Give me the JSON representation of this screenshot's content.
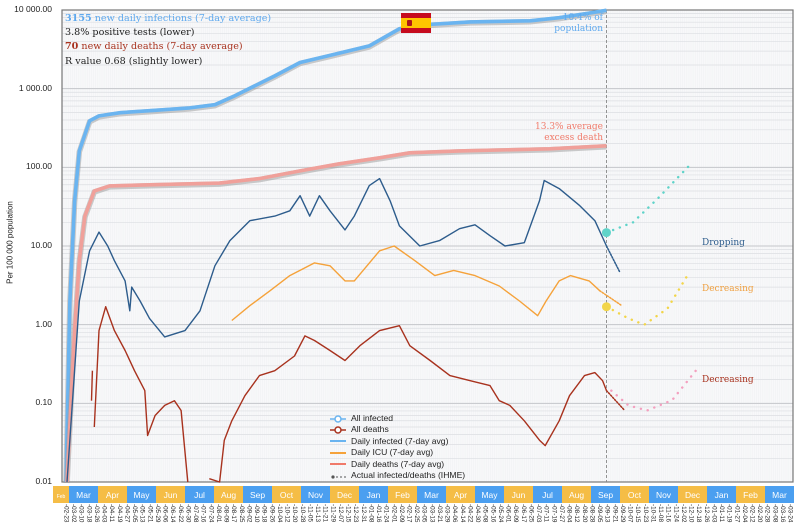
{
  "info": {
    "infections_count": "3155",
    "infections_text": " new daily infections (7-day average)",
    "positive_tests": "3.8% positive tests (lower)",
    "deaths_count": "70",
    "deaths_text": " new daily deaths (7-day average)",
    "r_value": "R value 0.68 (slightly lower)"
  },
  "annotations": {
    "population_share": [
      "10.4% of",
      "population"
    ],
    "excess_death": [
      "13.3% average",
      "excess death"
    ],
    "infected_trend": "Dropping",
    "icu_trend": "Decreasing",
    "deaths_trend": "Decreasing"
  },
  "flag": {
    "country": "Spain",
    "colors": [
      "#c60b1e",
      "#ffc400",
      "#c60b1e"
    ]
  },
  "chart_data": {
    "type": "line",
    "title": "",
    "ylabel": "Per 100 000 population",
    "y_scale": "log",
    "ylim": [
      0.01,
      10000
    ],
    "y_ticks": [
      "10 000.00",
      "1 000.00",
      "100.00",
      "10.00",
      "1.00",
      "0.10",
      "0.01"
    ],
    "grid": true,
    "legend_position": "bottom-center",
    "today_marker": "2021-09-17",
    "months": [
      {
        "label": "Feb",
        "color": "#f5bd46"
      },
      {
        "label": "Mar",
        "color": "#4b9ff0"
      },
      {
        "label": "Apr",
        "color": "#f5bd46"
      },
      {
        "label": "May",
        "color": "#4b9ff0"
      },
      {
        "label": "Jun",
        "color": "#f5bd46"
      },
      {
        "label": "Jul",
        "color": "#4b9ff0"
      },
      {
        "label": "Aug",
        "color": "#f5bd46"
      },
      {
        "label": "Sep",
        "color": "#4b9ff0"
      },
      {
        "label": "Oct",
        "color": "#f5bd46"
      },
      {
        "label": "Nov",
        "color": "#4b9ff0"
      },
      {
        "label": "Dec",
        "color": "#f5bd46"
      },
      {
        "label": "Jan",
        "color": "#4b9ff0"
      },
      {
        "label": "Feb",
        "color": "#f5bd46"
      },
      {
        "label": "Mar",
        "color": "#4b9ff0"
      },
      {
        "label": "Apr",
        "color": "#f5bd46"
      },
      {
        "label": "May",
        "color": "#4b9ff0"
      },
      {
        "label": "Jun",
        "color": "#f5bd46"
      },
      {
        "label": "Jul",
        "color": "#4b9ff0"
      },
      {
        "label": "Aug",
        "color": "#f5bd46"
      },
      {
        "label": "Sep",
        "color": "#4b9ff0"
      },
      {
        "label": "Oct",
        "color": "#f5bd46"
      },
      {
        "label": "Nov",
        "color": "#4b9ff0"
      },
      {
        "label": "Dec",
        "color": "#f5bd46"
      },
      {
        "label": "Jan",
        "color": "#4b9ff0"
      },
      {
        "label": "Feb",
        "color": "#f5bd46"
      },
      {
        "label": "Mar",
        "color": "#4b9ff0"
      }
    ],
    "date_ticks": [
      "02-23",
      "03-02",
      "03-10",
      "03-18",
      "03-26",
      "04-03",
      "04-11",
      "04-19",
      "04-27",
      "05-05",
      "05-13",
      "05-21",
      "05-29",
      "06-06",
      "06-14",
      "06-22",
      "06-30",
      "07-08",
      "07-16",
      "07-24",
      "08-01",
      "08-09",
      "08-17",
      "08-25",
      "09-02",
      "09-10",
      "09-18",
      "09-26",
      "10-04",
      "10-12",
      "10-20",
      "10-28",
      "11-05",
      "11-13",
      "11-21",
      "11-29",
      "12-07",
      "12-15",
      "12-23",
      "12-31",
      "01-08",
      "01-16",
      "01-24",
      "02-01",
      "02-09",
      "02-17",
      "02-25",
      "03-05",
      "03-13",
      "03-21",
      "03-29",
      "04-06",
      "04-14",
      "04-22",
      "04-30",
      "05-08",
      "05-16",
      "05-24",
      "06-01",
      "06-09",
      "06-17",
      "06-25",
      "07-03",
      "07-11",
      "07-19",
      "07-27",
      "08-04",
      "08-12",
      "08-20",
      "08-28",
      "09-05",
      "09-13",
      "09-21",
      "09-29",
      "10-07",
      "10-15",
      "10-23",
      "10-31",
      "11-08",
      "11-16",
      "11-24",
      "12-02",
      "12-10",
      "12-18",
      "12-26",
      "01-03",
      "01-11",
      "01-19",
      "01-27",
      "02-04",
      "02-12",
      "02-20",
      "02-28",
      "03-08",
      "03-16",
      "03-24"
    ],
    "series": [
      {
        "name": "All infected",
        "color": "#6ab4f0",
        "style": "cumulative",
        "points": [
          [
            "2020-02-27",
            0.01
          ],
          [
            "2020-03-02",
            2.0
          ],
          [
            "2020-03-07",
            37
          ],
          [
            "2020-03-12",
            162
          ],
          [
            "2020-03-23",
            390
          ],
          [
            "2020-04-02",
            450
          ],
          [
            "2020-04-24",
            495
          ],
          [
            "2020-05-25",
            525
          ],
          [
            "2020-07-06",
            570
          ],
          [
            "2020-08-02",
            625
          ],
          [
            "2020-08-23",
            810
          ],
          [
            "2020-09-13",
            1085
          ],
          [
            "2020-10-04",
            1455
          ],
          [
            "2020-10-31",
            2150
          ],
          [
            "2020-12-01",
            2650
          ],
          [
            "2021-01-12",
            3500
          ],
          [
            "2021-02-12",
            5760
          ],
          [
            "2021-03-04",
            6450
          ],
          [
            "2021-04-26",
            7050
          ],
          [
            "2021-06-28",
            7300
          ],
          [
            "2021-07-29",
            7980
          ],
          [
            "2021-08-30",
            9130
          ],
          [
            "2021-09-17",
            9920
          ]
        ]
      },
      {
        "name": "All deaths",
        "color": "#f0a09a",
        "style": "cumulative",
        "points": [
          [
            "2020-02-28",
            0.01
          ],
          [
            "2020-03-07",
            0.85
          ],
          [
            "2020-03-12",
            6.5
          ],
          [
            "2020-03-18",
            24
          ],
          [
            "2020-03-28",
            50
          ],
          [
            "2020-04-13",
            58
          ],
          [
            "2020-05-25",
            60
          ],
          [
            "2020-08-07",
            63
          ],
          [
            "2020-09-18",
            72
          ],
          [
            "2020-10-31",
            90
          ],
          [
            "2020-12-11",
            111
          ],
          [
            "2021-01-23",
            132
          ],
          [
            "2021-02-22",
            153
          ],
          [
            "2021-04-15",
            162
          ],
          [
            "2021-07-19",
            172
          ],
          [
            "2021-09-17",
            188
          ]
        ]
      },
      {
        "name": "Daily infected (7-day avg)",
        "color": "#2d5c8c",
        "style": "line",
        "points": [
          [
            "2020-02-28",
            0.01
          ],
          [
            "2020-03-12",
            2.0
          ],
          [
            "2020-03-23",
            8.7
          ],
          [
            "2020-04-02",
            15
          ],
          [
            "2020-04-11",
            10
          ],
          [
            "2020-04-18",
            6.5
          ],
          [
            "2020-04-29",
            3.6
          ],
          [
            "2020-05-04",
            1.5
          ],
          [
            "2020-05-06",
            3.0
          ],
          [
            "2020-05-15",
            2.0
          ],
          [
            "2020-05-25",
            1.2
          ],
          [
            "2020-06-10",
            0.7
          ],
          [
            "2020-07-01",
            0.84
          ],
          [
            "2020-07-17",
            1.5
          ],
          [
            "2020-08-02",
            5.6
          ],
          [
            "2020-08-18",
            11.7
          ],
          [
            "2020-09-08",
            21
          ],
          [
            "2020-10-04",
            24
          ],
          [
            "2020-10-20",
            28
          ],
          [
            "2020-10-31",
            43.6
          ],
          [
            "2020-11-10",
            24
          ],
          [
            "2020-11-20",
            43.6
          ],
          [
            "2020-12-01",
            28
          ],
          [
            "2020-12-17",
            16
          ],
          [
            "2020-12-27",
            24
          ],
          [
            "2021-01-12",
            58.6
          ],
          [
            "2021-01-23",
            72
          ],
          [
            "2021-02-03",
            37.6
          ],
          [
            "2021-02-12",
            18
          ],
          [
            "2021-03-04",
            10
          ],
          [
            "2021-03-25",
            11.7
          ],
          [
            "2021-04-15",
            16.6
          ],
          [
            "2021-05-01",
            18.6
          ],
          [
            "2021-05-17",
            13.5
          ],
          [
            "2021-06-02",
            10
          ],
          [
            "2021-06-22",
            11
          ],
          [
            "2021-07-08",
            37.6
          ],
          [
            "2021-07-13",
            68
          ],
          [
            "2021-07-29",
            53.6
          ],
          [
            "2021-08-20",
            32.5
          ],
          [
            "2021-09-05",
            21
          ],
          [
            "2021-09-17",
            10
          ]
        ]
      },
      {
        "name": "Daily ICU (7-day avg)",
        "color": "#f5a23a",
        "style": "line",
        "points": [
          [
            "2020-08-20",
            1.13
          ],
          [
            "2020-09-08",
            1.74
          ],
          [
            "2020-09-29",
            2.7
          ],
          [
            "2020-10-20",
            4.2
          ],
          [
            "2020-11-15",
            6.1
          ],
          [
            "2020-12-01",
            5.6
          ],
          [
            "2020-12-17",
            3.6
          ],
          [
            "2020-12-27",
            3.6
          ],
          [
            "2021-01-23",
            8.7
          ],
          [
            "2021-02-07",
            10
          ],
          [
            "2021-02-27",
            6.5
          ],
          [
            "2021-03-20",
            4.2
          ],
          [
            "2021-04-09",
            4.9
          ],
          [
            "2021-05-01",
            4.2
          ],
          [
            "2021-05-27",
            3.1
          ],
          [
            "2021-06-17",
            2.0
          ],
          [
            "2021-07-06",
            1.3
          ],
          [
            "2021-07-15",
            2.0
          ],
          [
            "2021-07-29",
            3.6
          ],
          [
            "2021-08-10",
            4.2
          ],
          [
            "2021-08-30",
            3.6
          ],
          [
            "2021-09-10",
            2.7
          ]
        ]
      },
      {
        "name": "Daily deaths (7-day avg)",
        "color": "#a8321e",
        "style": "line",
        "segments": [
          [
            [
              "2020-03-25",
              0.108
            ],
            [
              "2020-03-26",
              0.26
            ]
          ],
          [
            [
              "2020-03-28",
              0.05
            ],
            [
              "2020-04-02",
              0.84
            ],
            [
              "2020-04-09",
              1.69
            ],
            [
              "2020-04-18",
              0.84
            ],
            [
              "2020-04-29",
              0.47
            ],
            [
              "2020-05-09",
              0.26
            ],
            [
              "2020-05-20",
              0.145
            ],
            [
              "2020-05-23",
              0.039
            ],
            [
              "2020-05-31",
              0.07
            ],
            [
              "2020-06-10",
              0.094
            ],
            [
              "2020-06-20",
              0.108
            ],
            [
              "2020-06-27",
              0.081
            ],
            [
              "2020-07-04",
              0.01
            ]
          ],
          [
            [
              "2020-07-27",
              0.011
            ],
            [
              "2020-08-07",
              0.01
            ],
            [
              "2020-08-12",
              0.034
            ],
            [
              "2020-08-20",
              0.06
            ],
            [
              "2020-09-03",
              0.125
            ],
            [
              "2020-09-18",
              0.225
            ],
            [
              "2020-10-04",
              0.26
            ],
            [
              "2020-10-25",
              0.4
            ],
            [
              "2020-11-05",
              0.72
            ],
            [
              "2020-11-15",
              0.63
            ],
            [
              "2020-12-01",
              0.47
            ],
            [
              "2020-12-17",
              0.35
            ],
            [
              "2021-01-02",
              0.54
            ],
            [
              "2021-01-23",
              0.84
            ],
            [
              "2021-02-12",
              0.97
            ],
            [
              "2021-02-22",
              0.54
            ],
            [
              "2021-03-15",
              0.35
            ],
            [
              "2021-04-05",
              0.225
            ],
            [
              "2021-04-26",
              0.194
            ],
            [
              "2021-05-17",
              0.168
            ],
            [
              "2021-05-27",
              0.108
            ],
            [
              "2021-06-07",
              0.094
            ],
            [
              "2021-06-22",
              0.06
            ],
            [
              "2021-07-08",
              0.034
            ],
            [
              "2021-07-14",
              0.029
            ],
            [
              "2021-07-29",
              0.06
            ],
            [
              "2021-08-09",
              0.125
            ],
            [
              "2021-08-25",
              0.225
            ],
            [
              "2021-09-05",
              0.246
            ],
            [
              "2021-09-13",
              0.194
            ],
            [
              "2021-09-17",
              0.145
            ]
          ]
        ]
      },
      {
        "name": "Actual infected/deaths (IHME)",
        "color": "#555555",
        "style": "dotted",
        "points": []
      }
    ],
    "projections": [
      {
        "color": "#2d5c8c",
        "points": [
          [
            "2021-09-17",
            10
          ],
          [
            "2021-10-01",
            4.6
          ]
        ]
      },
      {
        "color": "#f5a23a",
        "points": [
          [
            "2021-09-10",
            2.7
          ],
          [
            "2021-10-03",
            1.74
          ]
        ]
      },
      {
        "color": "#a8321e",
        "points": [
          [
            "2021-09-17",
            0.145
          ],
          [
            "2021-10-06",
            0.081
          ]
        ]
      },
      {
        "color": "#5fd3c9",
        "marker": true,
        "points": [
          [
            "2021-09-17",
            14.8
          ],
          [
            "2021-10-15",
            20
          ],
          [
            "2021-11-10",
            40
          ],
          [
            "2021-12-13",
            105
          ]
        ]
      },
      {
        "color": "#f2d54a",
        "marker": true,
        "points": [
          [
            "2021-09-17",
            1.69
          ],
          [
            "2021-10-10",
            1.2
          ],
          [
            "2021-10-27",
            1.0
          ],
          [
            "2021-11-20",
            1.6
          ],
          [
            "2021-12-13",
            4.6
          ]
        ]
      },
      {
        "color": "#f3a0bf",
        "marker": false,
        "points": [
          [
            "2021-09-22",
            0.145
          ],
          [
            "2021-10-10",
            0.094
          ],
          [
            "2021-10-30",
            0.081
          ],
          [
            "2021-11-25",
            0.11
          ],
          [
            "2021-12-20",
            0.26
          ]
        ]
      }
    ]
  }
}
